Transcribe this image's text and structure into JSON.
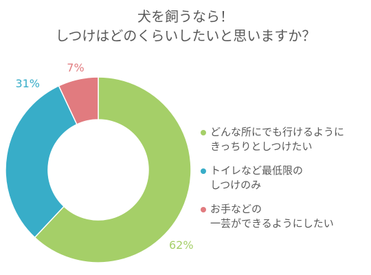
{
  "title_lines": [
    "犬を飼うなら！",
    "しつけはどのくらいしたいと思いますか？"
  ],
  "chart_data": {
    "type": "pie",
    "variant": "donut",
    "start_angle_deg": 0,
    "direction": "clockwise",
    "labels": [
      "どんな所にでも行けるようにきっちりとしつけたい",
      "トイレなど最低限のしつけのみ",
      "お手などの一芸ができるようにしたい"
    ],
    "values": [
      62,
      31,
      7
    ],
    "value_labels": [
      "62%",
      "31%",
      "7%"
    ],
    "colors": [
      "#a5cf68",
      "#38adc8",
      "#e17b7f"
    ],
    "legend_position": "right"
  },
  "legend": [
    {
      "lines": [
        "どんな所にでも行けるように",
        "きっちりとしつけたい"
      ],
      "color": "#a5cf68"
    },
    {
      "lines": [
        "トイレなど最低限の",
        "しつけのみ"
      ],
      "color": "#38adc8"
    },
    {
      "lines": [
        "お手などの",
        "一芸ができるようにしたい"
      ],
      "color": "#e17b7f"
    }
  ]
}
